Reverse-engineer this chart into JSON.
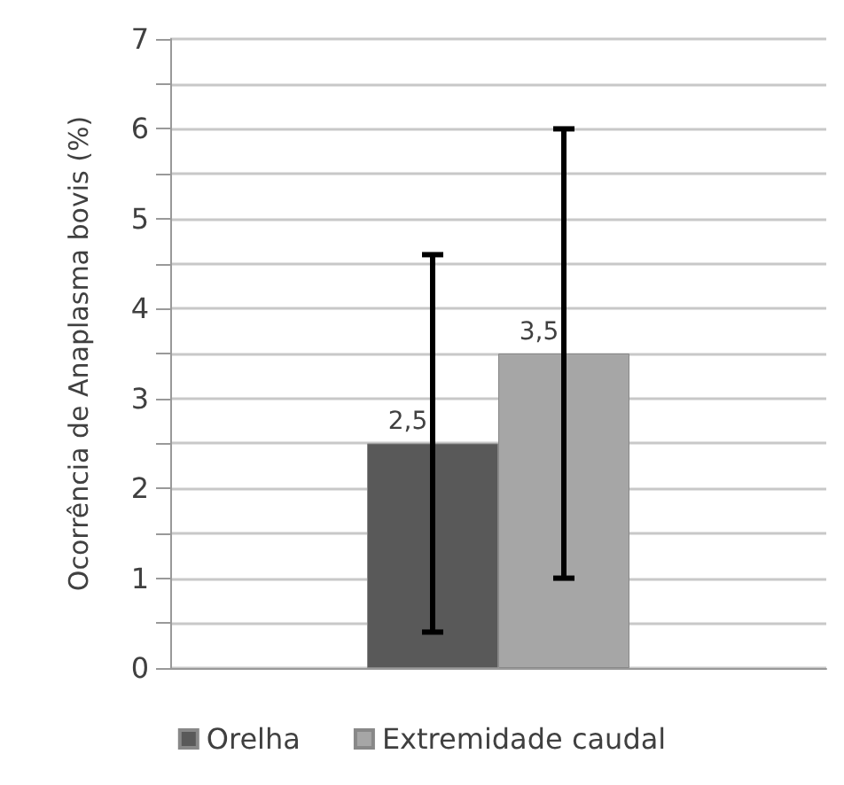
{
  "chart_data": {
    "type": "bar",
    "ylabel": "Ocorrência de Anaplasma bovis (%)",
    "categories": [
      null
    ],
    "series": [
      {
        "name": "Orelha",
        "color": "#595959",
        "values": [
          2.5
        ],
        "errors": [
          [
            0.4,
            4.6
          ]
        ],
        "value_labels": [
          "2,5"
        ]
      },
      {
        "name": "Extremidade caudal",
        "color": "#a6a6a6",
        "values": [
          3.5
        ],
        "errors": [
          [
            1.0,
            6.0
          ]
        ],
        "value_labels": [
          "3,5"
        ]
      }
    ],
    "ylim": [
      0,
      7
    ],
    "yticks": [
      0,
      {
        "value": 0.5,
        "label": null
      },
      1,
      {
        "value": 1.5,
        "label": null
      },
      2,
      {
        "value": 2.5,
        "label": null
      },
      3,
      {
        "value": 3.5,
        "label": null
      },
      4,
      {
        "value": 4.5,
        "label": null
      },
      5,
      {
        "value": 5.5,
        "label": null
      },
      6,
      {
        "value": 6.5,
        "label": null
      },
      7
    ],
    "grid": "y",
    "legend": "bottom"
  }
}
